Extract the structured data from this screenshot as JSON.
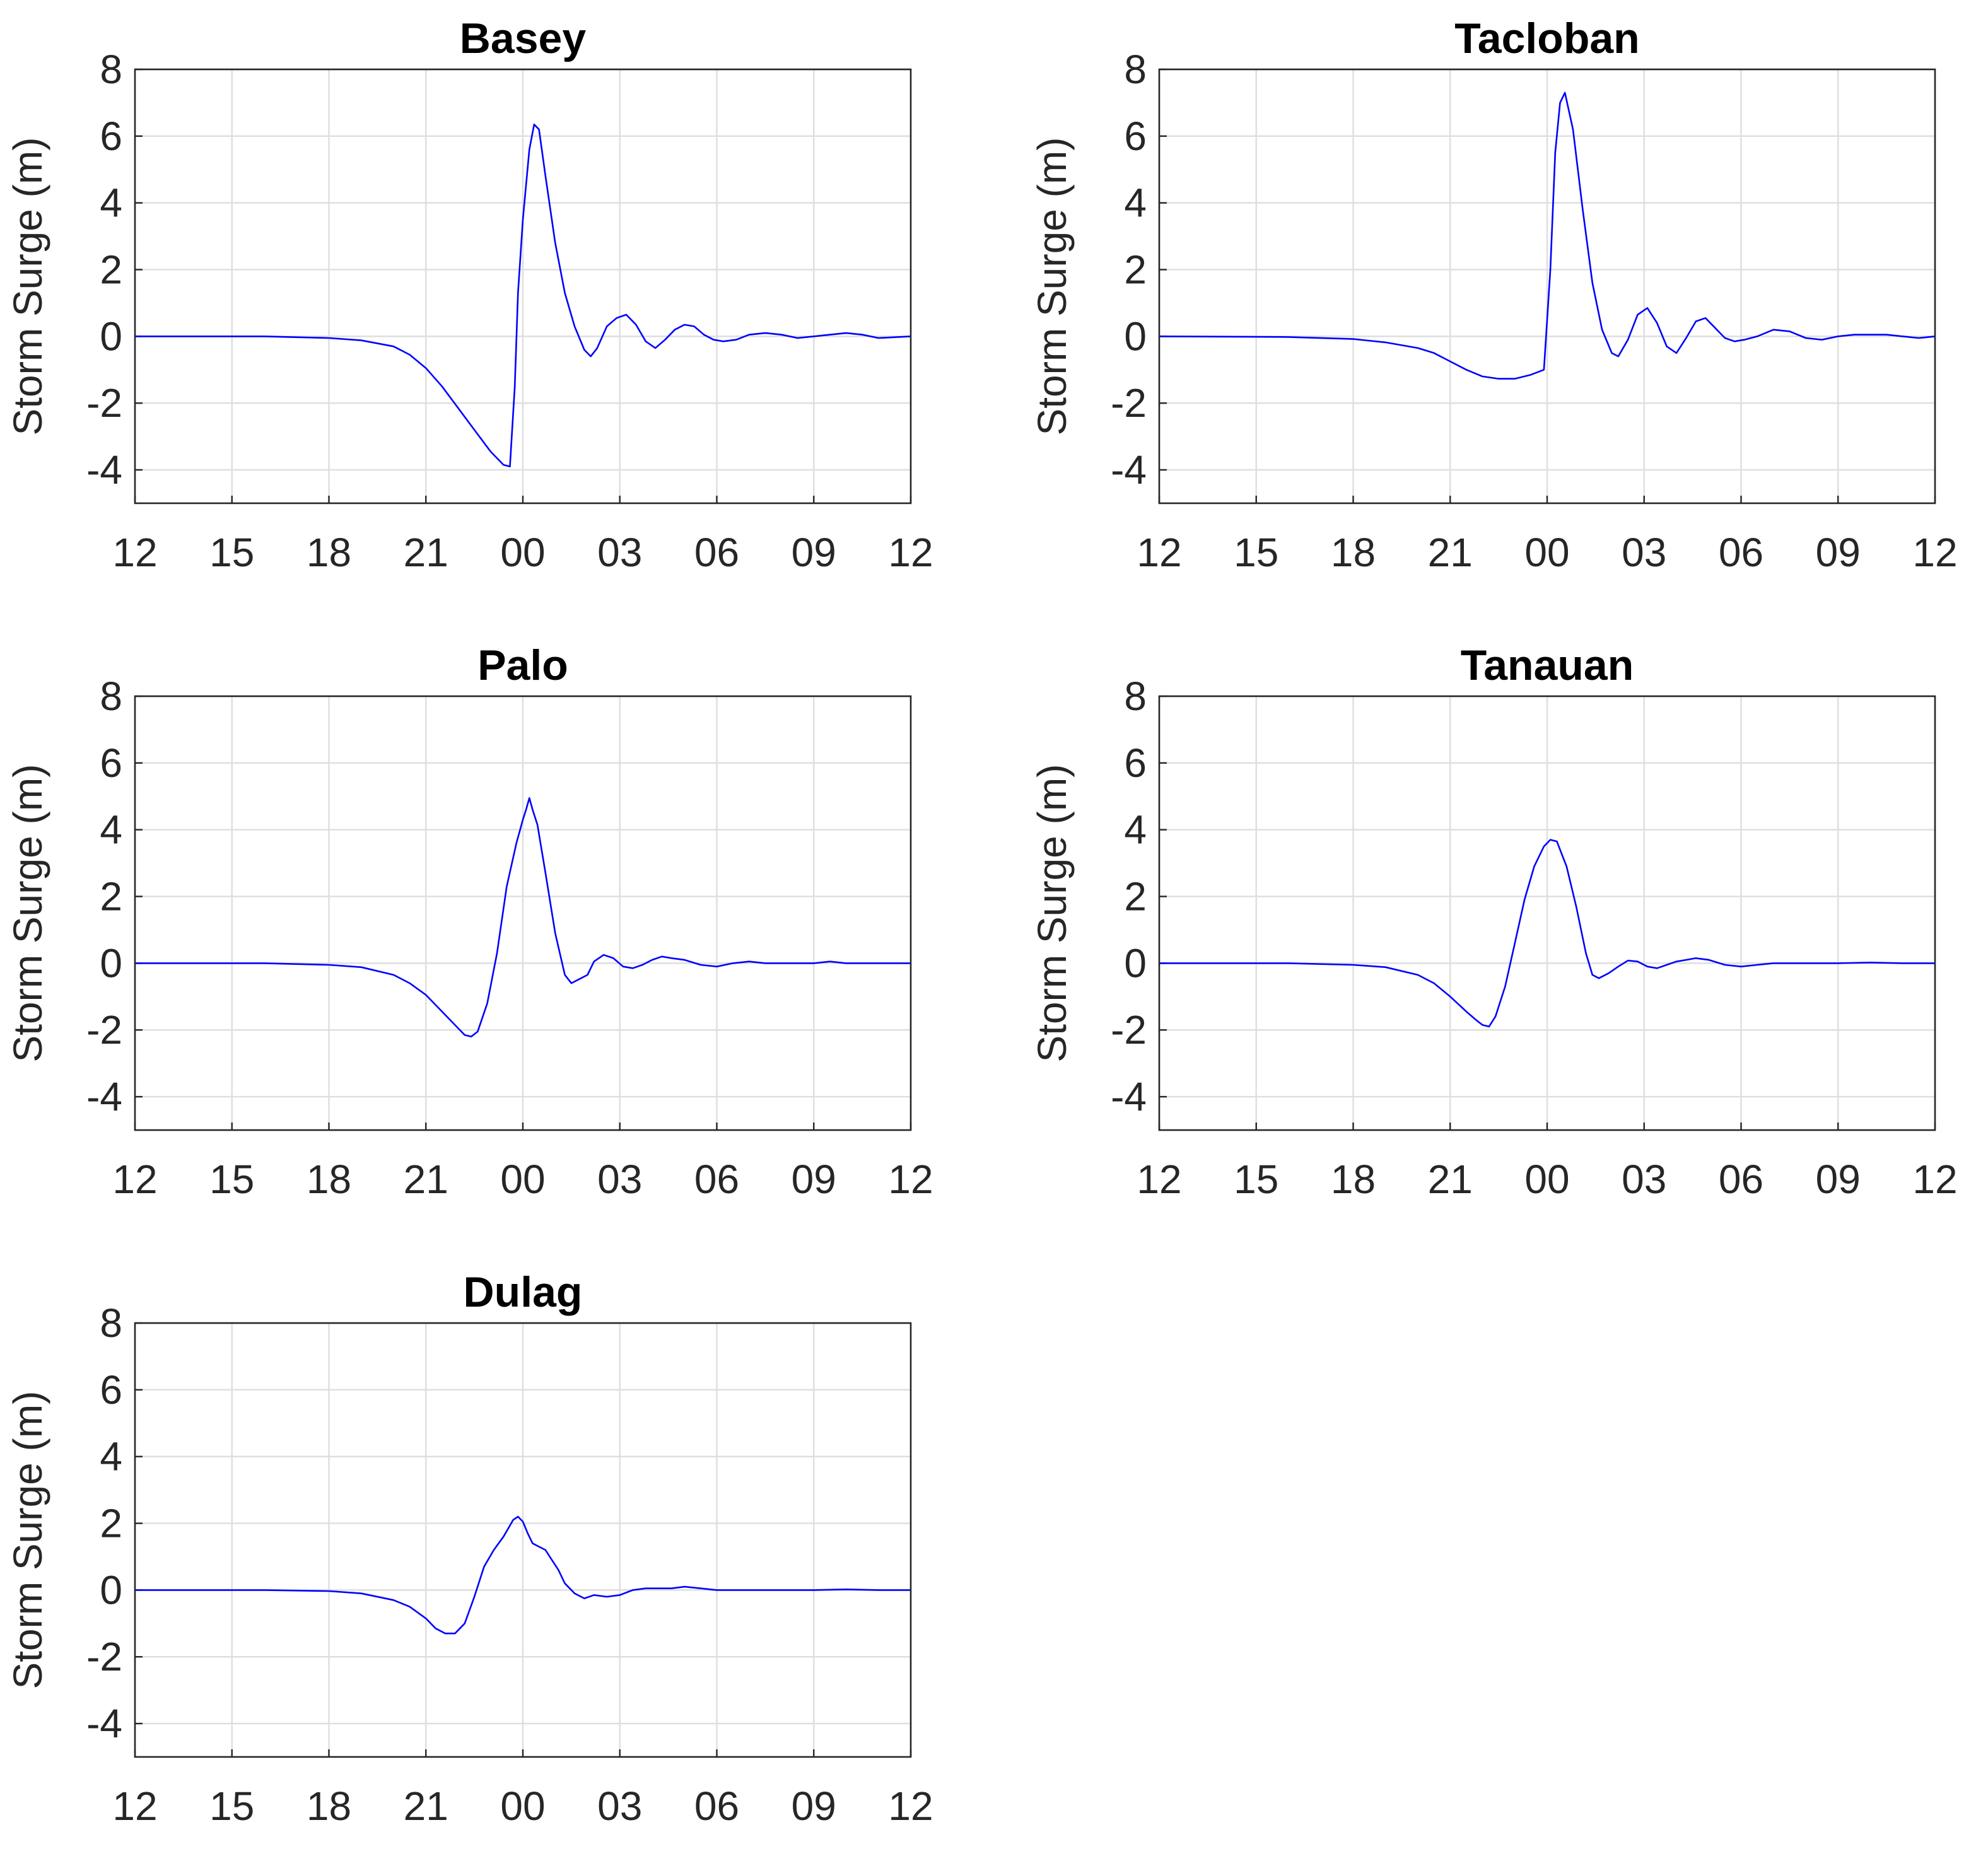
{
  "chart_data": [
    {
      "type": "line",
      "title": "Basey",
      "ylabel": "Storm Surge (m)",
      "xlabel": "",
      "x_tick_labels": [
        "12",
        "15",
        "18",
        "21",
        "00",
        "03",
        "06",
        "09",
        "12"
      ],
      "y_ticks": [
        8,
        6,
        4,
        2,
        0,
        -2,
        -4
      ],
      "y_tick_labels": [
        "8",
        "6",
        "4",
        "2",
        "0",
        "-2",
        "-4"
      ],
      "ylim": [
        -5,
        8
      ],
      "x_unit": "hours from first 12 tick",
      "xlim": [
        0,
        24
      ],
      "grid": true,
      "series_color": "#0000ff",
      "x": [
        0,
        4,
        6,
        7,
        8,
        8.5,
        9,
        9.5,
        10,
        10.5,
        11,
        11.4,
        11.6,
        11.75,
        11.85,
        12.0,
        12.2,
        12.35,
        12.5,
        12.7,
        13.0,
        13.3,
        13.6,
        13.9,
        14.1,
        14.3,
        14.6,
        14.9,
        15.2,
        15.5,
        15.8,
        16.1,
        16.4,
        16.7,
        17.0,
        17.3,
        17.6,
        17.9,
        18.2,
        18.6,
        19.0,
        19.5,
        20.0,
        20.5,
        21.0,
        21.5,
        22.0,
        22.5,
        23.0,
        24
      ],
      "y": [
        0,
        0,
        -0.05,
        -0.12,
        -0.3,
        -0.55,
        -0.95,
        -1.5,
        -2.15,
        -2.8,
        -3.45,
        -3.85,
        -3.9,
        -1.5,
        1.3,
        3.5,
        5.6,
        6.35,
        6.2,
        4.8,
        2.8,
        1.3,
        0.3,
        -0.4,
        -0.6,
        -0.35,
        0.3,
        0.55,
        0.65,
        0.35,
        -0.15,
        -0.35,
        -0.1,
        0.2,
        0.35,
        0.3,
        0.05,
        -0.1,
        -0.15,
        -0.1,
        0.05,
        0.1,
        0.05,
        -0.05,
        0,
        0.05,
        0.1,
        0.05,
        -0.05,
        0
      ]
    },
    {
      "type": "line",
      "title": "Tacloban",
      "ylabel": "Storm Surge (m)",
      "xlabel": "",
      "x_tick_labels": [
        "12",
        "15",
        "18",
        "21",
        "00",
        "03",
        "06",
        "09",
        "12"
      ],
      "y_ticks": [
        8,
        6,
        4,
        2,
        0,
        -2,
        -4
      ],
      "y_tick_labels": [
        "8",
        "6",
        "4",
        "2",
        "0",
        "-2",
        "-4"
      ],
      "ylim": [
        -5,
        8
      ],
      "x_unit": "hours from first 12 tick",
      "xlim": [
        0,
        24
      ],
      "grid": true,
      "series_color": "#0000ff",
      "x": [
        0,
        4,
        6,
        7,
        8,
        8.5,
        9,
        9.5,
        10,
        10.5,
        11,
        11.5,
        11.9,
        12.1,
        12.25,
        12.4,
        12.55,
        12.8,
        13.1,
        13.4,
        13.7,
        14.0,
        14.2,
        14.5,
        14.8,
        15.1,
        15.4,
        15.7,
        16.0,
        16.3,
        16.6,
        16.9,
        17.2,
        17.5,
        17.8,
        18.1,
        18.5,
        19.0,
        19.5,
        20.0,
        20.5,
        21.0,
        21.5,
        22.0,
        22.5,
        23.0,
        23.5,
        24
      ],
      "y": [
        0,
        -0.02,
        -0.08,
        -0.18,
        -0.35,
        -0.5,
        -0.75,
        -1.0,
        -1.2,
        -1.27,
        -1.27,
        -1.15,
        -1.0,
        2.0,
        5.5,
        7.0,
        7.3,
        6.2,
        3.8,
        1.6,
        0.2,
        -0.5,
        -0.6,
        -0.1,
        0.65,
        0.85,
        0.4,
        -0.3,
        -0.5,
        -0.05,
        0.45,
        0.55,
        0.25,
        -0.05,
        -0.15,
        -0.1,
        0.0,
        0.2,
        0.15,
        -0.05,
        -0.1,
        0.0,
        0.05,
        0.05,
        0.05,
        0.0,
        -0.05,
        0
      ]
    },
    {
      "type": "line",
      "title": "Palo",
      "ylabel": "Storm Surge (m)",
      "xlabel": "",
      "x_tick_labels": [
        "12",
        "15",
        "18",
        "21",
        "00",
        "03",
        "06",
        "09",
        "12"
      ],
      "y_ticks": [
        8,
        6,
        4,
        2,
        0,
        -2,
        -4
      ],
      "y_tick_labels": [
        "8",
        "6",
        "4",
        "2",
        "0",
        "-2",
        "-4"
      ],
      "ylim": [
        -5,
        8
      ],
      "x_unit": "hours from first 12 tick",
      "xlim": [
        0,
        24
      ],
      "grid": true,
      "series_color": "#0000ff",
      "x": [
        0,
        4,
        6,
        7,
        8,
        8.5,
        9,
        9.5,
        10,
        10.2,
        10.4,
        10.6,
        10.9,
        11.2,
        11.5,
        11.8,
        12.0,
        12.1,
        12.2,
        12.3,
        12.45,
        12.7,
        13.0,
        13.3,
        13.5,
        13.7,
        14.0,
        14.2,
        14.5,
        14.8,
        15.1,
        15.4,
        15.7,
        16.0,
        16.3,
        16.6,
        17.0,
        17.5,
        18.0,
        18.5,
        19.0,
        19.5,
        20.0,
        20.5,
        21.0,
        21.5,
        22.0,
        23.0,
        24
      ],
      "y": [
        0,
        0,
        -0.05,
        -0.12,
        -0.35,
        -0.6,
        -0.95,
        -1.45,
        -1.95,
        -2.15,
        -2.2,
        -2.05,
        -1.2,
        0.3,
        2.3,
        3.6,
        4.3,
        4.6,
        4.95,
        4.6,
        4.15,
        2.7,
        0.9,
        -0.35,
        -0.6,
        -0.5,
        -0.35,
        0.05,
        0.25,
        0.15,
        -0.1,
        -0.15,
        -0.05,
        0.1,
        0.2,
        0.15,
        0.1,
        -0.05,
        -0.1,
        0.0,
        0.05,
        0.0,
        0.0,
        0.0,
        0.0,
        0.05,
        0.0,
        0.0,
        0
      ]
    },
    {
      "type": "line",
      "title": "Tanauan",
      "ylabel": "Storm Surge (m)",
      "xlabel": "",
      "x_tick_labels": [
        "12",
        "15",
        "18",
        "21",
        "00",
        "03",
        "06",
        "09",
        "12"
      ],
      "y_ticks": [
        8,
        6,
        4,
        2,
        0,
        -2,
        -4
      ],
      "y_tick_labels": [
        "8",
        "6",
        "4",
        "2",
        "0",
        "-2",
        "-4"
      ],
      "ylim": [
        -5,
        8
      ],
      "x_unit": "hours from first 12 tick",
      "xlim": [
        0,
        24
      ],
      "grid": true,
      "series_color": "#0000ff",
      "x": [
        0,
        4,
        6,
        7,
        8,
        8.5,
        9,
        9.5,
        9.8,
        10.0,
        10.2,
        10.4,
        10.7,
        11.0,
        11.3,
        11.6,
        11.9,
        12.1,
        12.3,
        12.6,
        12.9,
        13.2,
        13.4,
        13.6,
        13.9,
        14.2,
        14.5,
        14.8,
        15.1,
        15.4,
        15.7,
        16.0,
        16.3,
        16.6,
        17.0,
        17.5,
        18.0,
        18.5,
        19.0,
        19.5,
        20.0,
        21.0,
        22.0,
        23.0,
        24
      ],
      "y": [
        0,
        0,
        -0.05,
        -0.12,
        -0.35,
        -0.6,
        -1.0,
        -1.45,
        -1.7,
        -1.85,
        -1.9,
        -1.6,
        -0.7,
        0.6,
        1.9,
        2.9,
        3.5,
        3.7,
        3.65,
        2.9,
        1.7,
        0.3,
        -0.35,
        -0.45,
        -0.3,
        -0.1,
        0.08,
        0.05,
        -0.1,
        -0.15,
        -0.05,
        0.05,
        0.1,
        0.15,
        0.1,
        -0.05,
        -0.1,
        -0.05,
        0.0,
        0.0,
        0.0,
        0.0,
        0.02,
        0.0,
        0
      ]
    },
    {
      "type": "line",
      "title": "Dulag",
      "ylabel": "Storm Surge (m)",
      "xlabel": "",
      "x_tick_labels": [
        "12",
        "15",
        "18",
        "21",
        "00",
        "03",
        "06",
        "09",
        "12"
      ],
      "y_ticks": [
        8,
        6,
        4,
        2,
        0,
        -2,
        -4
      ],
      "y_tick_labels": [
        "8",
        "6",
        "4",
        "2",
        "0",
        "-2",
        "-4"
      ],
      "ylim": [
        -5,
        8
      ],
      "x_unit": "hours from first 12 tick",
      "xlim": [
        0,
        24
      ],
      "grid": true,
      "series_color": "#0000ff",
      "x": [
        0,
        4,
        6,
        7,
        8,
        8.5,
        9,
        9.3,
        9.6,
        9.9,
        10.2,
        10.5,
        10.8,
        11.1,
        11.4,
        11.7,
        11.85,
        12.0,
        12.15,
        12.3,
        12.5,
        12.7,
        12.9,
        13.1,
        13.3,
        13.6,
        13.9,
        14.2,
        14.6,
        15.0,
        15.4,
        15.8,
        16.2,
        16.6,
        17.0,
        17.5,
        18.0,
        19.0,
        20.0,
        21.0,
        22.0,
        23.0,
        24
      ],
      "y": [
        0,
        0,
        -0.03,
        -0.1,
        -0.3,
        -0.5,
        -0.85,
        -1.15,
        -1.3,
        -1.3,
        -1.0,
        -0.2,
        0.7,
        1.2,
        1.6,
        2.1,
        2.2,
        2.05,
        1.7,
        1.4,
        1.3,
        1.2,
        0.9,
        0.6,
        0.2,
        -0.1,
        -0.25,
        -0.15,
        -0.2,
        -0.15,
        0.0,
        0.05,
        0.05,
        0.05,
        0.1,
        0.05,
        0.0,
        0.0,
        0.0,
        0.0,
        0.02,
        0.0,
        0
      ]
    }
  ]
}
